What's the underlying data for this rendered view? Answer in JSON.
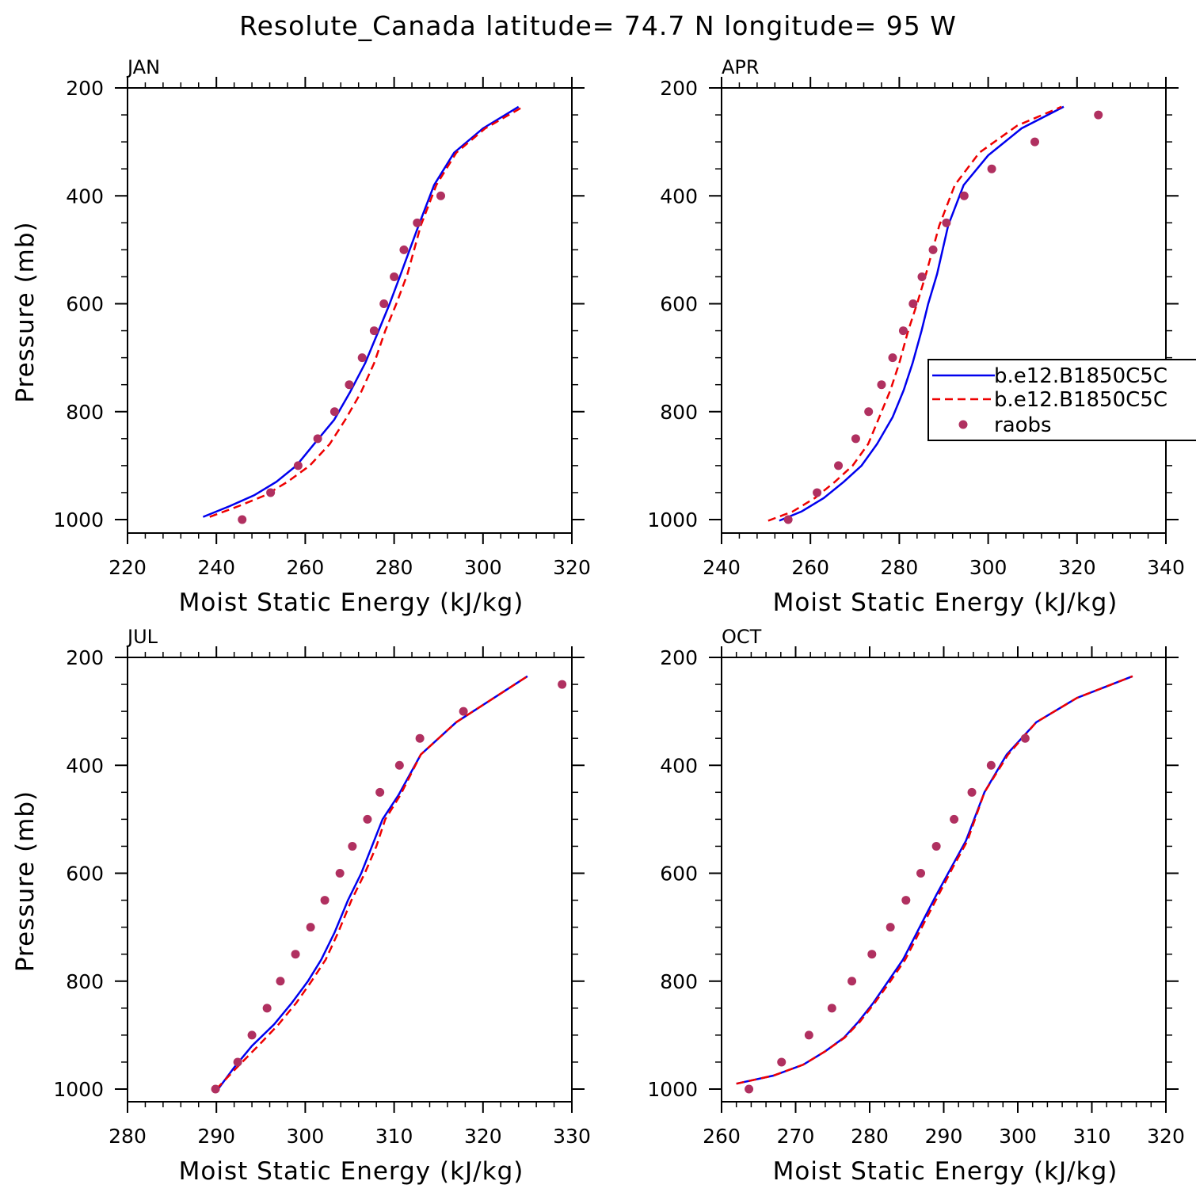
{
  "title": "Resolute_Canada  latitude= 74.7 N longitude= 95 W",
  "legend": {
    "entries": [
      "b.e12.B1850C5C",
      "b.e12.B1850C5C",
      "raobs"
    ]
  },
  "colors": {
    "model_1": "#0000ee",
    "model_2": "#ee0000",
    "raobs": "#b03060"
  },
  "chart_data": [
    {
      "type": "line",
      "panel": "JAN",
      "xlabel": "Moist Static Energy (kJ/kg)",
      "ylabel": "Pressure (mb)",
      "xlim": [
        220,
        320
      ],
      "ylim": [
        1000,
        200
      ],
      "xticks": [
        "220",
        "240",
        "260",
        "280",
        "300",
        "320"
      ],
      "yticks": [
        "200",
        "400",
        "600",
        "800",
        "1000"
      ],
      "series": [
        {
          "name": "b.e12.B1850C5C",
          "style": "solid",
          "color": "#0000ee",
          "x": [
            237.0,
            243.0,
            248.5,
            253.5,
            258.0,
            262.0,
            266.5,
            270.0,
            273.5,
            276.5,
            279.0,
            281.5,
            285.5,
            289.0,
            293.5,
            300.0,
            308.0
          ],
          "y": [
            995,
            975,
            955,
            930,
            900,
            860,
            815,
            765,
            710,
            650,
            600,
            545,
            455,
            380,
            320,
            275,
            235
          ]
        },
        {
          "name": "b.e12.B1850C5C",
          "style": "dashed",
          "color": "#ee0000",
          "x": [
            238.5,
            245.0,
            251.0,
            256.0,
            261.0,
            265.5,
            269.0,
            272.5,
            275.5,
            278.0,
            280.5,
            283.0,
            286.0,
            289.5,
            294.0,
            300.5,
            309.0
          ],
          "y": [
            995,
            975,
            955,
            930,
            900,
            860,
            815,
            765,
            710,
            650,
            600,
            545,
            455,
            380,
            320,
            275,
            235
          ]
        }
      ],
      "raobs": {
        "x": [
          245.8,
          252.2,
          258.4,
          262.8,
          266.6,
          269.9,
          272.8,
          275.5,
          277.7,
          280.0,
          282.2,
          285.2,
          290.5
        ],
        "y": [
          1000,
          950,
          900,
          850,
          800,
          750,
          700,
          650,
          600,
          550,
          500,
          450,
          400
        ]
      }
    },
    {
      "type": "line",
      "panel": "APR",
      "xlabel": "Moist Static Energy (kJ/kg)",
      "ylabel": "",
      "xlim": [
        240,
        340
      ],
      "ylim": [
        1000,
        200
      ],
      "xticks": [
        "240",
        "260",
        "280",
        "300",
        "320",
        "340"
      ],
      "yticks": [
        "200",
        "400",
        "600",
        "800",
        "1000"
      ],
      "series": [
        {
          "name": "b.e12.B1850C5C",
          "style": "solid",
          "color": "#0000ee",
          "x": [
            253.0,
            258.0,
            263.0,
            267.5,
            271.5,
            275.0,
            278.5,
            281.0,
            283.0,
            285.0,
            286.5,
            288.5,
            291.0,
            294.5,
            300.0,
            307.5,
            317.0
          ],
          "y": [
            1002,
            985,
            960,
            930,
            900,
            860,
            810,
            760,
            710,
            650,
            600,
            545,
            455,
            380,
            325,
            275,
            235
          ]
        },
        {
          "name": "b.e12.B1850C5C",
          "style": "dashed",
          "color": "#ee0000",
          "x": [
            250.5,
            256.0,
            261.0,
            265.5,
            269.5,
            273.0,
            275.5,
            278.0,
            280.0,
            282.0,
            284.0,
            286.0,
            289.0,
            292.5,
            298.0,
            306.5,
            316.5
          ],
          "y": [
            1002,
            985,
            960,
            930,
            900,
            860,
            810,
            760,
            710,
            650,
            600,
            545,
            455,
            380,
            320,
            270,
            235
          ]
        }
      ],
      "raobs": {
        "x": [
          255.0,
          261.5,
          266.3,
          270.2,
          273.1,
          276.0,
          278.5,
          280.9,
          283.1,
          285.1,
          287.6,
          290.6,
          294.6,
          300.8,
          310.5,
          324.8
        ],
        "y": [
          1000,
          950,
          900,
          850,
          800,
          750,
          700,
          650,
          600,
          550,
          500,
          450,
          400,
          350,
          300,
          250
        ]
      }
    },
    {
      "type": "line",
      "panel": "JUL",
      "xlabel": "Moist Static Energy (kJ/kg)",
      "ylabel": "Pressure (mb)",
      "xlim": [
        280,
        330
      ],
      "ylim": [
        1000,
        200
      ],
      "xticks": [
        "280",
        "290",
        "300",
        "310",
        "320",
        "330"
      ],
      "yticks": [
        "200",
        "400",
        "600",
        "800",
        "1000"
      ],
      "series": [
        {
          "name": "b.e12.B1850C5C",
          "style": "solid",
          "color": "#0000ee",
          "x": [
            290.2,
            292.0,
            294.0,
            296.5,
            298.5,
            300.3,
            301.8,
            303.3,
            304.8,
            306.3,
            307.5,
            308.7,
            310.5,
            313.0,
            317.0,
            325.0
          ],
          "y": [
            1000,
            960,
            920,
            880,
            840,
            800,
            760,
            710,
            650,
            600,
            550,
            500,
            455,
            380,
            320,
            235
          ]
        },
        {
          "name": "b.e12.B1850C5C",
          "style": "dashed",
          "color": "#ee0000",
          "x": [
            290.0,
            292.3,
            294.7,
            297.0,
            299.0,
            300.7,
            302.3,
            303.7,
            305.2,
            306.7,
            308.0,
            309.0,
            310.7,
            313.0,
            317.0,
            325.0
          ],
          "y": [
            1000,
            960,
            920,
            880,
            840,
            800,
            760,
            710,
            650,
            600,
            550,
            500,
            455,
            380,
            320,
            235
          ]
        }
      ],
      "raobs": {
        "x": [
          289.9,
          292.4,
          294.0,
          295.7,
          297.2,
          298.9,
          300.6,
          302.2,
          303.9,
          305.3,
          307.0,
          308.4,
          310.6,
          312.9,
          317.8,
          328.9
        ],
        "y": [
          1000,
          950,
          900,
          850,
          800,
          750,
          700,
          650,
          600,
          550,
          500,
          450,
          400,
          350,
          300,
          250
        ]
      }
    },
    {
      "type": "line",
      "panel": "OCT",
      "xlabel": "Moist Static Energy (kJ/kg)",
      "ylabel": "",
      "xlim": [
        260,
        320
      ],
      "ylim": [
        1000,
        200
      ],
      "xticks": [
        "260",
        "270",
        "280",
        "290",
        "300",
        "310",
        "320"
      ],
      "yticks": [
        "200",
        "400",
        "600",
        "800",
        "1000"
      ],
      "series": [
        {
          "name": "b.e12.B1850C5C",
          "style": "solid",
          "color": "#0000ee",
          "x": [
            262.0,
            267.0,
            271.0,
            274.0,
            276.5,
            278.5,
            280.5,
            282.5,
            284.5,
            286.0,
            287.5,
            289.0,
            291.0,
            293.0,
            295.5,
            298.5,
            302.5,
            308.0,
            315.5
          ],
          "y": [
            990,
            975,
            955,
            930,
            905,
            875,
            840,
            800,
            760,
            720,
            680,
            640,
            590,
            540,
            450,
            380,
            320,
            275,
            235
          ]
        },
        {
          "name": "b.e12.B1850C5C",
          "style": "dashed",
          "color": "#ee0000",
          "x": [
            262.0,
            267.0,
            271.0,
            274.0,
            276.6,
            278.7,
            280.7,
            282.8,
            284.8,
            286.3,
            287.8,
            289.3,
            291.2,
            293.2,
            295.5,
            298.7,
            302.5,
            308.0,
            315.5
          ],
          "y": [
            990,
            975,
            955,
            930,
            905,
            875,
            840,
            800,
            760,
            720,
            680,
            640,
            590,
            540,
            450,
            380,
            320,
            275,
            235
          ]
        }
      ],
      "raobs": {
        "x": [
          263.7,
          268.1,
          271.8,
          274.9,
          277.6,
          280.3,
          282.8,
          284.9,
          286.9,
          289.0,
          291.4,
          293.8,
          296.4,
          301.0
        ],
        "y": [
          1000,
          950,
          900,
          850,
          800,
          750,
          700,
          650,
          600,
          550,
          500,
          450,
          400,
          350
        ]
      }
    }
  ]
}
